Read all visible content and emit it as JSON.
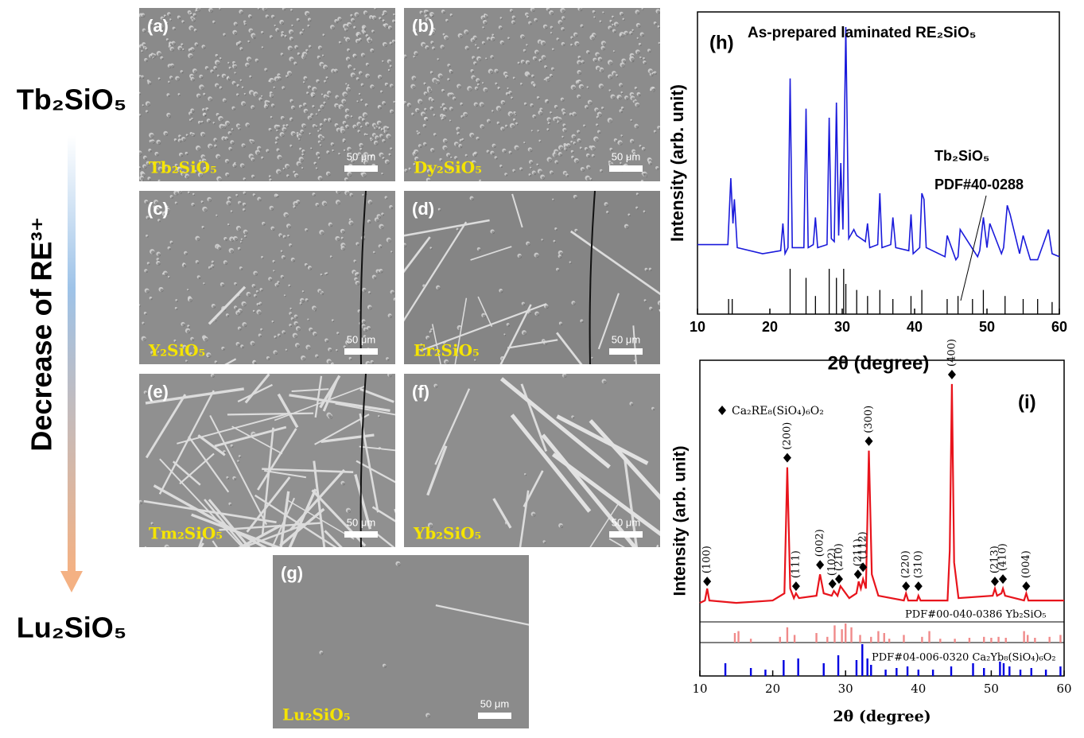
{
  "left": {
    "top": "Tb₂SiO₅",
    "axis": "Decrease of RE³⁺",
    "bottom": "Lu₂SiO₅"
  },
  "panels": [
    {
      "label": "(a)",
      "material": "Tb₂SiO₅",
      "scale": "50 μm"
    },
    {
      "label": "(b)",
      "material": "Dy₂SiO₅",
      "scale": "50 μm"
    },
    {
      "label": "(c)",
      "material": "Y₂SiO₅",
      "scale": "50 μm"
    },
    {
      "label": "(d)",
      "material": "Er₂SiO₅",
      "scale": "50 μm"
    },
    {
      "label": "(e)",
      "material": "Tm₂SiO₅",
      "scale": "50 μm"
    },
    {
      "label": "(f)",
      "material": "Yb₂SiO₅",
      "scale": "50 μm"
    },
    {
      "label": "(g)",
      "material": "Lu₂SiO₅",
      "scale": "50 μm"
    }
  ],
  "chart_data": [
    {
      "type": "line",
      "label": "(h)",
      "title": "As-prepared laminated RE₂SiO₅",
      "xlabel": "2θ (degree)",
      "ylabel": "Intensity (arb. unit)",
      "xlim": [
        10,
        60
      ],
      "ylim": [
        0,
        100
      ],
      "xticks": [
        10,
        20,
        30,
        40,
        50,
        60
      ],
      "annotations": [
        "Tb₂SiO₅",
        "PDF#40-0288"
      ],
      "series": [
        {
          "color": "#1a1adb",
          "x": [
            10,
            14.2,
            14.6,
            14.9,
            15.1,
            15.5,
            19,
            21.5,
            21.8,
            22.1,
            22.5,
            22.8,
            23.1,
            24.7,
            25,
            25.3,
            26,
            26.3,
            26.6,
            27.9,
            28.2,
            28.5,
            28.9,
            29.2,
            29.5,
            29.8,
            30.1,
            30.5,
            30.9,
            31.6,
            32,
            32.6,
            33.2,
            33.5,
            33.8,
            34.9,
            35.2,
            35.5,
            36.7,
            37,
            37.4,
            39.2,
            39.5,
            39.8,
            40.7,
            41,
            41.3,
            41.6,
            44.2,
            44.5,
            45.7,
            46,
            46.3,
            48.7,
            49,
            49.5,
            50,
            50.4,
            52,
            52.3,
            52.8,
            53.2,
            54.5,
            55,
            56,
            57,
            58.5,
            59,
            60
          ],
          "values": [
            23,
            23,
            45,
            30,
            38,
            22,
            20,
            21,
            30,
            20,
            22,
            78,
            22,
            22,
            68,
            22,
            23,
            32,
            22,
            23,
            65,
            25,
            24,
            70,
            26,
            50,
            28,
            95,
            25,
            28,
            26,
            25,
            24,
            30,
            22,
            23,
            40,
            22,
            23,
            32,
            22,
            21,
            33,
            20,
            22,
            40,
            38,
            22,
            19,
            26,
            18,
            19,
            28,
            19,
            21,
            32,
            22,
            30,
            20,
            22,
            36,
            33,
            20,
            26,
            18,
            18,
            28,
            20,
            19
          ]
        },
        {
          "type": "stick",
          "color": "#000000",
          "x": [
            14.3,
            14.8,
            22.8,
            25,
            26.3,
            28.2,
            29.2,
            30.2,
            30.5,
            32,
            33.5,
            35.2,
            37,
            39.5,
            41,
            44.5,
            46,
            48,
            49.5,
            52.5,
            55,
            57,
            59
          ],
          "values": [
            5,
            5,
            15,
            12,
            6,
            15,
            12,
            15,
            10,
            8,
            6,
            8,
            5,
            6,
            8,
            5,
            6,
            5,
            8,
            6,
            5,
            5,
            4
          ]
        }
      ]
    },
    {
      "type": "line",
      "label": "(i)",
      "legend": "Ca₂RE₈(SiO₄)₆O₂",
      "xlabel": "2θ (degree)",
      "ylabel": "Intensity (arb. unit)",
      "xlim": [
        10,
        60
      ],
      "ylim": [
        0,
        110
      ],
      "xticks": [
        10,
        20,
        30,
        40,
        50,
        60
      ],
      "series": [
        {
          "color": "#e8141c",
          "x": [
            10,
            10.7,
            11,
            11.3,
            15,
            20,
            21.6,
            22,
            22.4,
            22.9,
            23.2,
            23.6,
            26,
            26.5,
            27,
            28.1,
            28.4,
            28.9,
            29.3,
            30.5,
            31.5,
            31.8,
            32.1,
            32.4,
            32.8,
            33.2,
            33.6,
            34.5,
            38,
            38.3,
            38.6,
            39.8,
            40,
            40.3,
            44,
            44.3,
            44.6,
            44.9,
            45.5,
            50.2,
            50.5,
            50.8,
            51.4,
            51.6,
            51.9,
            54.5,
            54.8,
            55.1,
            60
          ],
          "values": [
            8,
            9,
            14,
            9,
            8,
            9,
            12,
            65,
            14,
            10,
            12,
            10,
            11,
            20,
            12,
            11,
            13,
            11,
            15,
            10,
            12,
            17,
            14,
            18,
            14,
            72,
            20,
            11,
            9,
            12,
            9,
            9,
            11,
            9,
            9,
            30,
            100,
            25,
            10,
            11,
            14,
            11,
            12,
            14,
            11,
            9,
            12,
            9,
            9
          ]
        }
      ],
      "peaks": [
        {
          "label": "(100)",
          "x": 11,
          "y": 17
        },
        {
          "label": "(200)",
          "x": 22,
          "y": 69
        },
        {
          "label": "(111)",
          "x": 23.2,
          "y": 15
        },
        {
          "label": "(002)",
          "x": 26.5,
          "y": 24
        },
        {
          "label": "(102)",
          "x": 28.2,
          "y": 16
        },
        {
          "label": "(210)",
          "x": 29.1,
          "y": 18
        },
        {
          "label": "(211)",
          "x": 31.7,
          "y": 20
        },
        {
          "label": "(112)",
          "x": 32.4,
          "y": 23
        },
        {
          "label": "(300)",
          "x": 33.2,
          "y": 76
        },
        {
          "label": "(220)",
          "x": 38.3,
          "y": 15
        },
        {
          "label": "(310)",
          "x": 40,
          "y": 15
        },
        {
          "label": "(400)",
          "x": 44.6,
          "y": 104
        },
        {
          "label": "(213)",
          "x": 50.5,
          "y": 17
        },
        {
          "label": "(410)",
          "x": 51.6,
          "y": 18
        },
        {
          "label": "(004)",
          "x": 54.8,
          "y": 15
        }
      ],
      "references": [
        {
          "name": "PDF#00-040-0386 Yb₂SiO₅",
          "color": "#f08a8a",
          "x": [
            14.8,
            15.3,
            17,
            21,
            22,
            23,
            26,
            27.5,
            28.5,
            29.5,
            30,
            30.8,
            32,
            33.5,
            34.5,
            35.3,
            36,
            38,
            40.5,
            41.5,
            43,
            45,
            47,
            49,
            50,
            51,
            52,
            54.5,
            55,
            56,
            58,
            59.5
          ],
          "values": [
            50,
            60,
            20,
            30,
            80,
            40,
            50,
            30,
            90,
            70,
            100,
            80,
            40,
            30,
            60,
            50,
            20,
            40,
            30,
            60,
            20,
            20,
            25,
            30,
            25,
            30,
            25,
            60,
            40,
            25,
            30,
            40
          ]
        },
        {
          "name": "PDF#04-006-0320 Ca₂Yb₈(SiO₄)₆O₂",
          "color": "#0000e0",
          "x": [
            13.5,
            17,
            19,
            21.5,
            23.5,
            27,
            29,
            31.5,
            32.3,
            33,
            33.5,
            35.5,
            37,
            38.5,
            40,
            42,
            44.5,
            47.5,
            49,
            51.2,
            51.7,
            52.5,
            54,
            55.5,
            57.5,
            59.5
          ],
          "values": [
            40,
            25,
            20,
            50,
            55,
            40,
            65,
            50,
            100,
            55,
            35,
            20,
            25,
            30,
            20,
            20,
            30,
            40,
            25,
            45,
            40,
            30,
            20,
            25,
            20,
            30
          ]
        }
      ]
    }
  ]
}
